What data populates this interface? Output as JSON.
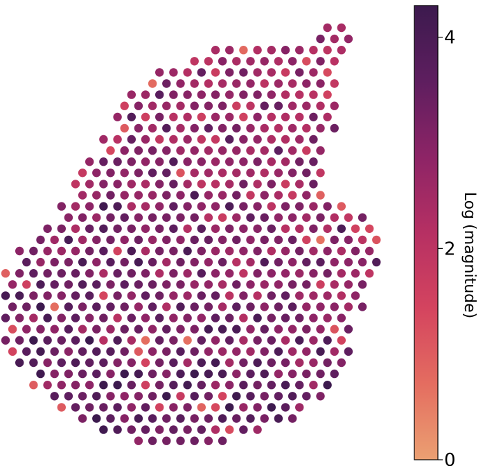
{
  "chart_data": {
    "type": "scatter",
    "description_kind": "spatial spot map",
    "colormap": "flare",
    "colormap_stops": [
      "#eba072",
      "#e46d60",
      "#d4445f",
      "#b63063",
      "#8d2466",
      "#5e1e5f",
      "#3c1a4e"
    ],
    "value_range": [
      0,
      4.3
    ],
    "colorbar": {
      "label": "Log (magnitude)",
      "ticks": [
        {
          "value": 0,
          "label": "0"
        },
        {
          "value": 2,
          "label": "2"
        },
        {
          "value": 4,
          "label": "4"
        }
      ]
    },
    "spots": {
      "grid_rows": 38,
      "rows_meta": [
        [
          0,
          23,
          24
        ],
        [
          1,
          22,
          24
        ],
        [
          2,
          15,
          24
        ],
        [
          3,
          13,
          23
        ],
        [
          4,
          11,
          23
        ],
        [
          5,
          10,
          23
        ],
        [
          6,
          9,
          23
        ],
        [
          7,
          8,
          23
        ],
        [
          8,
          8,
          23
        ],
        [
          9,
          8,
          23
        ],
        [
          10,
          7,
          22
        ],
        [
          11,
          7,
          22
        ],
        [
          12,
          6,
          22
        ],
        [
          13,
          5,
          22
        ],
        [
          14,
          5,
          22
        ],
        [
          15,
          5,
          22
        ],
        [
          16,
          4,
          24
        ],
        [
          17,
          4,
          25
        ],
        [
          18,
          3,
          26
        ],
        [
          19,
          2,
          26
        ],
        [
          20,
          1,
          26
        ],
        [
          21,
          1,
          26
        ],
        [
          22,
          0,
          26
        ],
        [
          23,
          0,
          25
        ],
        [
          24,
          0,
          25
        ],
        [
          25,
          0,
          25
        ],
        [
          26,
          0,
          24
        ],
        [
          27,
          0,
          24
        ],
        [
          28,
          0,
          24
        ],
        [
          29,
          0,
          24
        ],
        [
          30,
          1,
          24
        ],
        [
          31,
          2,
          23
        ],
        [
          32,
          2,
          23
        ],
        [
          33,
          3,
          22
        ],
        [
          34,
          4,
          21
        ],
        [
          35,
          5,
          20
        ],
        [
          36,
          7,
          18
        ],
        [
          37,
          9,
          15
        ]
      ],
      "mean_value": 3.0,
      "value_spread": 0.7,
      "pale_spot_note": "scattered low-value (light orange) spots, mostly along the upper edge"
    }
  }
}
